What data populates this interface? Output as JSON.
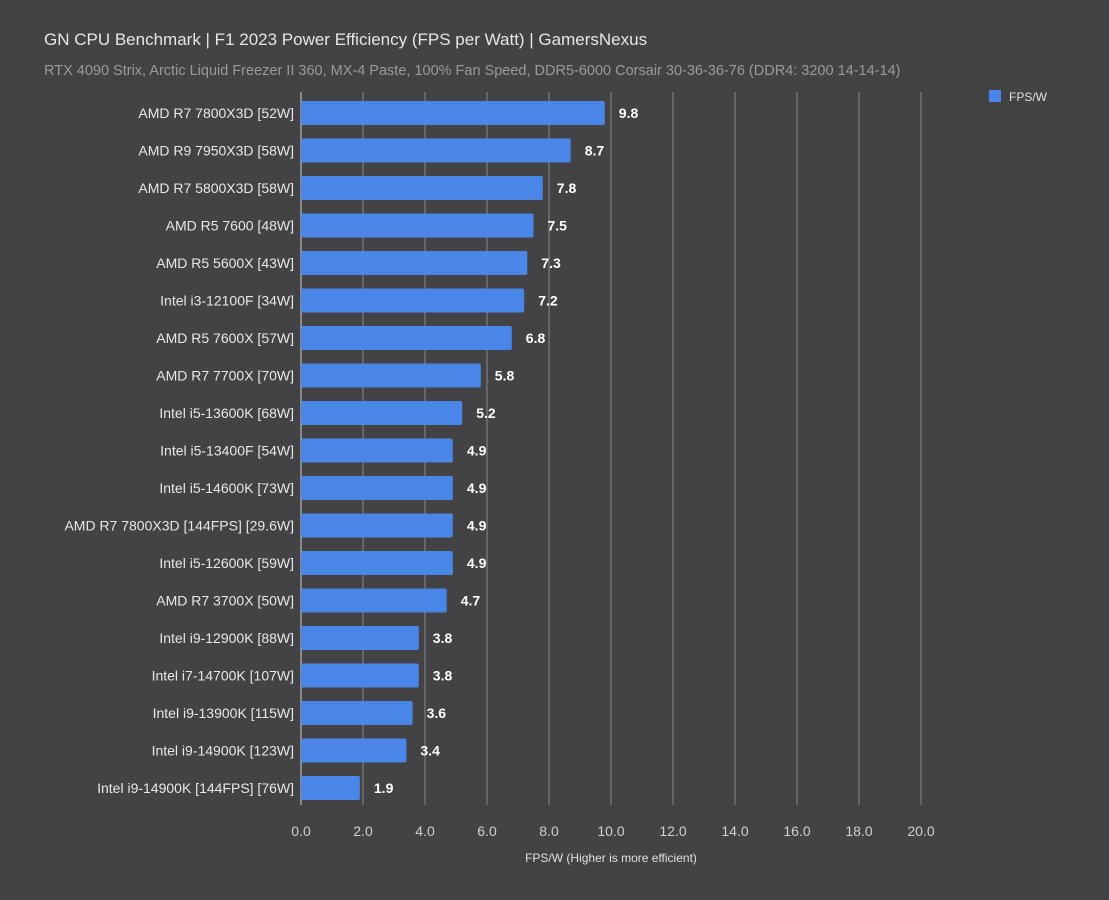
{
  "chart_data": {
    "type": "bar",
    "orientation": "horizontal",
    "title": "GN CPU Benchmark | F1 2023 Power Efficiency (FPS per Watt) | GamersNexus",
    "subtitle": "RTX 4090 Strix, Arctic Liquid Freezer II 360, MX-4 Paste, 100% Fan Speed, DDR5-6000 Corsair 30-36-36-76 (DDR4: 3200 14-14-14)",
    "categories": [
      "AMD R7 7800X3D [52W]",
      "AMD R9 7950X3D [58W]",
      "AMD R7 5800X3D [58W]",
      "AMD R5 7600 [48W]",
      "AMD R5 5600X [43W]",
      "Intel i3-12100F [34W]",
      "AMD R5 7600X [57W]",
      "AMD R7 7700X [70W]",
      "Intel i5-13600K [68W]",
      "Intel i5-13400F [54W]",
      "Intel i5-14600K [73W]",
      "AMD R7 7800X3D [144FPS] [29.6W]",
      "Intel i5-12600K [59W]",
      "AMD R7 3700X [50W]",
      "Intel i9-12900K [88W]",
      "Intel i7-14700K [107W]",
      "Intel i9-13900K [115W]",
      "Intel i9-14900K [123W]",
      "Intel i9-14900K [144FPS] [76W]"
    ],
    "series": [
      {
        "name": "FPS/W",
        "color": "#4a86e8",
        "values": [
          9.8,
          8.7,
          7.8,
          7.5,
          7.3,
          7.2,
          6.8,
          5.8,
          5.2,
          4.9,
          4.9,
          4.9,
          4.9,
          4.7,
          3.8,
          3.8,
          3.6,
          3.4,
          1.9
        ]
      }
    ],
    "xlabel": "FPS/W (Higher is more efficient)",
    "ylabel": "",
    "xlim": [
      0,
      20
    ],
    "xticks": [
      "0.0",
      "2.0",
      "4.0",
      "6.0",
      "8.0",
      "10.0",
      "12.0",
      "14.0",
      "16.0",
      "18.0",
      "20.0"
    ],
    "grid": true,
    "legend": "top-right",
    "background": "#434345"
  }
}
